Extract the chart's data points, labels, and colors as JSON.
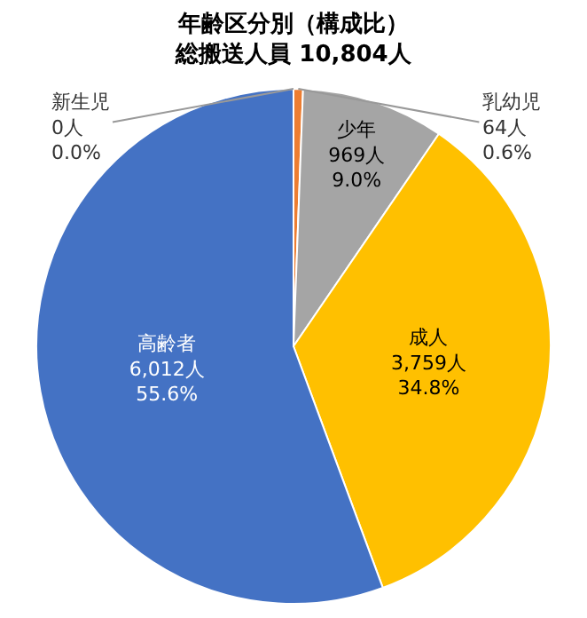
{
  "chart_data": {
    "type": "pie",
    "title": "年齢区分別（構成比）",
    "subtitle": "総搬送人員 10,804人",
    "categories": [
      "乳幼児",
      "少年",
      "成人",
      "高齢者",
      "新生児"
    ],
    "values": [
      64,
      969,
      3759,
      6012,
      0
    ],
    "value_labels": [
      "64人\n0.6%",
      "969人\n9.0%",
      "3,759人\n34.8%",
      "6,012人\n55.6%",
      "0人\n0.0%"
    ],
    "colors": [
      "#ed7d31",
      "#a5a5a5",
      "#ffc000",
      "#4472c4",
      "#5b9bd5"
    ],
    "legend": false
  }
}
